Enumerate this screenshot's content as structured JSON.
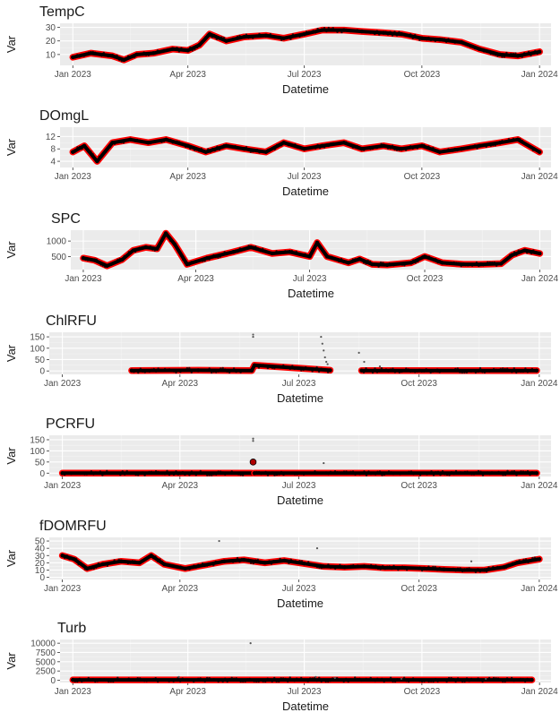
{
  "colors": {
    "panel_bg": "#ebebeb",
    "grid_major": "#ffffff",
    "grid_minor": "#f4f4f4",
    "point": "#000000",
    "line": "#ff0000",
    "text": "#1a1a1a",
    "tick_text": "#4d4d4d"
  },
  "chart_data": [
    {
      "type": "line",
      "title": "TempC",
      "xlabel": "Datetime",
      "ylabel": "Var",
      "xlim": [
        "2022-12-22",
        "2024-01-10"
      ],
      "x_ticks": [
        "Jan 2023",
        "Apr 2023",
        "Jul 2023",
        "Oct 2023",
        "Jan 2024"
      ],
      "y_ticks": [
        "10",
        "20",
        "30"
      ],
      "ylim": [
        2,
        33
      ],
      "series": [
        {
          "x": [
            "2023-01-01",
            "2023-01-15",
            "2023-02-01",
            "2023-02-10",
            "2023-02-20",
            "2023-03-05",
            "2023-03-20",
            "2023-04-01",
            "2023-04-10",
            "2023-04-18",
            "2023-05-01",
            "2023-05-15",
            "2023-06-01",
            "2023-06-15",
            "2023-07-01",
            "2023-07-15",
            "2023-08-01",
            "2023-08-15",
            "2023-09-01",
            "2023-09-15",
            "2023-10-01",
            "2023-10-15",
            "2023-11-01",
            "2023-11-15",
            "2023-12-01",
            "2023-12-15",
            "2024-01-01"
          ],
          "y": [
            8,
            11,
            9,
            6,
            10,
            11,
            14,
            13,
            17,
            25,
            20,
            23,
            24,
            22,
            25,
            28,
            28,
            27,
            26,
            25,
            22,
            21,
            19,
            14,
            10,
            9,
            12
          ]
        }
      ]
    },
    {
      "type": "line",
      "title": "DOmgL",
      "xlabel": "Datetime",
      "ylabel": "Var",
      "xlim": [
        "2022-12-22",
        "2024-01-10"
      ],
      "x_ticks": [
        "Jan 2023",
        "Apr 2023",
        "Jul 2023",
        "Oct 2023",
        "Jan 2024"
      ],
      "y_ticks": [
        "4",
        "8",
        "12"
      ],
      "ylim": [
        2,
        15
      ],
      "series": [
        {
          "x": [
            "2023-01-01",
            "2023-01-10",
            "2023-01-20",
            "2023-02-01",
            "2023-02-15",
            "2023-03-01",
            "2023-03-15",
            "2023-04-01",
            "2023-04-15",
            "2023-05-01",
            "2023-05-15",
            "2023-06-01",
            "2023-06-15",
            "2023-07-01",
            "2023-07-15",
            "2023-08-01",
            "2023-08-15",
            "2023-09-01",
            "2023-09-15",
            "2023-10-01",
            "2023-10-15",
            "2023-11-01",
            "2023-11-15",
            "2023-12-01",
            "2023-12-15",
            "2024-01-01"
          ],
          "y": [
            7,
            9,
            4,
            10,
            11,
            10,
            11,
            9,
            7,
            9,
            8,
            7,
            10,
            8,
            9,
            10,
            8,
            9,
            8,
            9,
            7,
            8,
            9,
            10,
            11,
            7
          ]
        }
      ]
    },
    {
      "type": "line",
      "title": "SPC",
      "xlabel": "Datetime",
      "ylabel": "Var",
      "xlim": [
        "2022-12-22",
        "2024-01-10"
      ],
      "x_ticks": [
        "Jan 2023",
        "Apr 2023",
        "Jul 2023",
        "Oct 2023",
        "Jan 2024"
      ],
      "y_ticks": [
        "500",
        "1000"
      ],
      "ylim": [
        80,
        1350
      ],
      "series": [
        {
          "x": [
            "2023-01-01",
            "2023-01-10",
            "2023-01-20",
            "2023-02-01",
            "2023-02-10",
            "2023-02-20",
            "2023-03-01",
            "2023-03-08",
            "2023-03-15",
            "2023-03-25",
            "2023-04-10",
            "2023-05-01",
            "2023-05-15",
            "2023-06-01",
            "2023-06-15",
            "2023-07-01",
            "2023-07-07",
            "2023-07-15",
            "2023-08-01",
            "2023-08-10",
            "2023-08-20",
            "2023-09-01",
            "2023-09-20",
            "2023-10-01",
            "2023-10-15",
            "2023-11-01",
            "2023-11-15",
            "2023-12-01",
            "2023-12-10",
            "2023-12-20",
            "2024-01-01"
          ],
          "y": [
            450,
            380,
            200,
            400,
            700,
            800,
            750,
            1250,
            900,
            250,
            450,
            650,
            800,
            600,
            650,
            500,
            950,
            500,
            300,
            420,
            250,
            230,
            300,
            500,
            300,
            250,
            250,
            270,
            550,
            700,
            600
          ]
        }
      ]
    },
    {
      "type": "line",
      "title": "ChlRFU",
      "xlabel": "Datetime",
      "ylabel": "Var",
      "xlim": [
        "2022-12-22",
        "2024-01-10"
      ],
      "x_ticks": [
        "Jan 2023",
        "Apr 2023",
        "Jul 2023",
        "Oct 2023",
        "Jan 2024"
      ],
      "y_ticks": [
        "0",
        "50",
        "100",
        "150"
      ],
      "ylim": [
        -15,
        170
      ],
      "series": [
        {
          "x": [
            "2023-02-23",
            "2023-04-15",
            "2023-05-26",
            "2023-05-28",
            "2023-07-25"
          ],
          "y": [
            2,
            3,
            2,
            25,
            3
          ]
        },
        {
          "x": [
            "2023-08-18",
            "2023-10-15",
            "2023-12-30"
          ],
          "y": [
            2,
            2,
            2
          ]
        }
      ],
      "outliers": {
        "x": [
          "2023-05-27",
          "2023-05-27",
          "2023-07-18",
          "2023-07-19",
          "2023-07-20",
          "2023-07-21",
          "2023-07-22",
          "2023-07-23",
          "2023-08-16",
          "2023-08-20",
          "2023-09-01"
        ],
        "y": [
          160,
          150,
          150,
          120,
          90,
          60,
          40,
          30,
          80,
          40,
          20
        ]
      }
    },
    {
      "type": "line",
      "title": "PCRFU",
      "xlabel": "Datetime",
      "ylabel": "Var",
      "xlim": [
        "2022-12-22",
        "2024-01-10"
      ],
      "x_ticks": [
        "Jan 2023",
        "Apr 2023",
        "Jul 2023",
        "Oct 2023",
        "Jan 2024"
      ],
      "y_ticks": [
        "0",
        "50",
        "100",
        "150"
      ],
      "ylim": [
        -15,
        170
      ],
      "series": [
        {
          "x": [
            "2023-01-01",
            "2023-05-26"
          ],
          "y": [
            0,
            0
          ]
        },
        {
          "x": [
            "2023-05-28",
            "2023-12-30"
          ],
          "y": [
            0,
            0
          ]
        }
      ],
      "outliers": {
        "x": [
          "2023-05-27",
          "2023-05-27",
          "2023-05-27",
          "2023-07-20"
        ],
        "y": [
          155,
          145,
          50,
          45
        ]
      }
    },
    {
      "type": "line",
      "title": "fDOMRFU",
      "xlabel": "Datetime",
      "ylabel": "Var",
      "xlim": [
        "2022-12-22",
        "2024-01-10"
      ],
      "x_ticks": [
        "Jan 2023",
        "Apr 2023",
        "Jul 2023",
        "Oct 2023",
        "Jan 2024"
      ],
      "y_ticks": [
        "0",
        "10",
        "20",
        "30",
        "40",
        "50"
      ],
      "ylim": [
        -3,
        55
      ],
      "series": [
        {
          "x": [
            "2023-01-01",
            "2023-01-10",
            "2023-01-20",
            "2023-02-01",
            "2023-02-15",
            "2023-03-01",
            "2023-03-10",
            "2023-03-20",
            "2023-04-05",
            "2023-04-20",
            "2023-05-05",
            "2023-05-20",
            "2023-06-05",
            "2023-06-20",
            "2023-07-05",
            "2023-07-20",
            "2023-08-05",
            "2023-08-20",
            "2023-09-05",
            "2023-09-20",
            "2023-10-05",
            "2023-10-20",
            "2023-11-05",
            "2023-11-20",
            "2023-12-05",
            "2023-12-15",
            "2024-01-01"
          ],
          "y": [
            30,
            25,
            12,
            18,
            22,
            20,
            30,
            18,
            12,
            17,
            22,
            24,
            20,
            23,
            19,
            15,
            14,
            15,
            13,
            13,
            12,
            11,
            10,
            10,
            14,
            20,
            25
          ]
        }
      ],
      "outliers": {
        "x": [
          "2023-05-01",
          "2023-07-15",
          "2023-11-10"
        ],
        "y": [
          50,
          40,
          22
        ]
      }
    },
    {
      "type": "line",
      "title": "Turb",
      "xlabel": "Datetime",
      "ylabel": "Var",
      "xlim": [
        "2022-12-22",
        "2024-01-10"
      ],
      "x_ticks": [
        "Jan 2023",
        "Apr 2023",
        "Jul 2023",
        "Oct 2023",
        "Jan 2024"
      ],
      "y_ticks": [
        "0",
        "2500",
        "5000",
        "7500",
        "10000"
      ],
      "ylim": [
        -600,
        11000
      ],
      "series": [
        {
          "x": [
            "2023-01-01",
            "2023-12-26"
          ],
          "y": [
            100,
            100
          ]
        }
      ],
      "outliers": {
        "x": [
          "2023-05-20",
          "2023-03-25",
          "2023-07-10",
          "2023-07-25",
          "2023-09-15",
          "2023-11-20"
        ],
        "y": [
          10000,
          900,
          900,
          600,
          400,
          400
        ]
      }
    }
  ]
}
